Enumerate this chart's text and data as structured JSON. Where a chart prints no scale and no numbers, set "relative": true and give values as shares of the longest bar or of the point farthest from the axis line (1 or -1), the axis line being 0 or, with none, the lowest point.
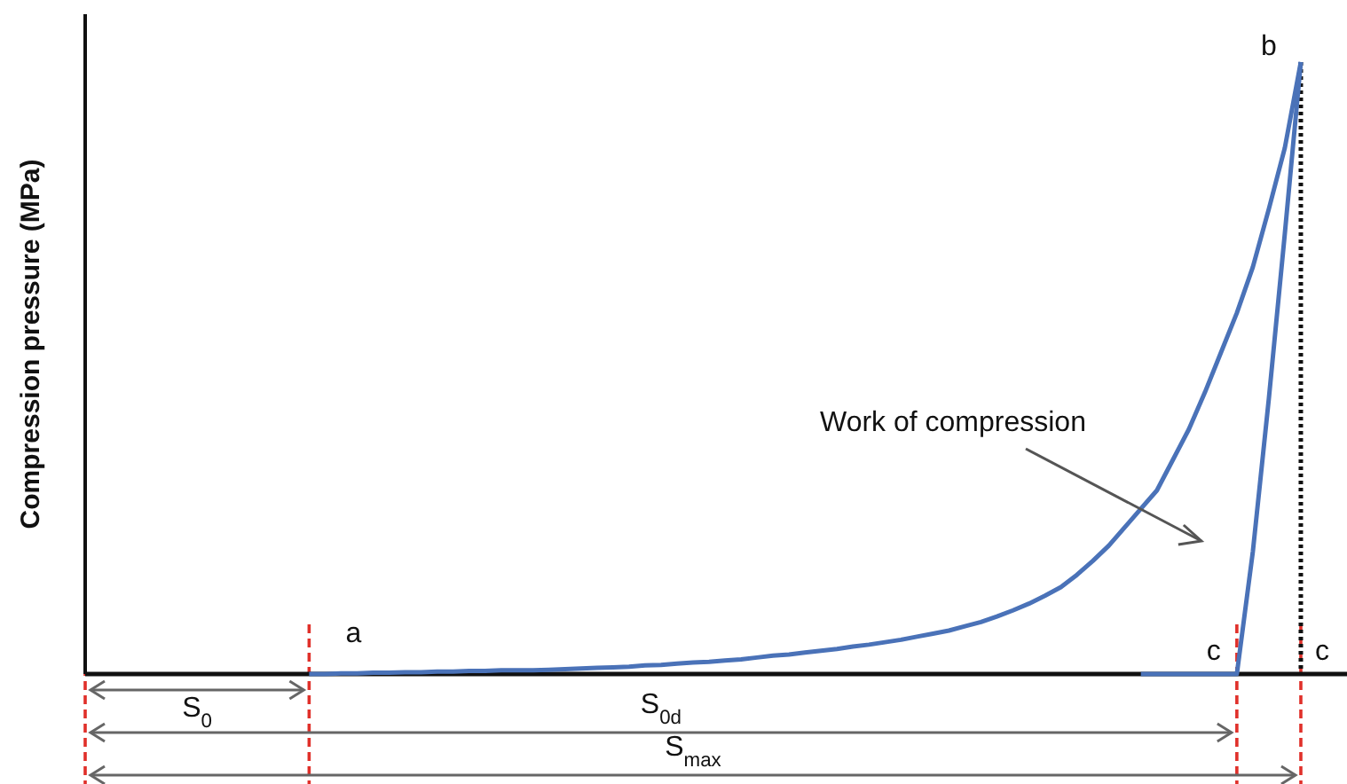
{
  "chart_data": {
    "type": "line",
    "relative": true,
    "ylabel": "Compression pressure (MPa)",
    "line_style": "solid",
    "categories": [
      null,
      null,
      null,
      null,
      null,
      null,
      null,
      null,
      null,
      null,
      null,
      null,
      null,
      null,
      null,
      null,
      null,
      null,
      null,
      null,
      null,
      null,
      null,
      null,
      null,
      null,
      null,
      null,
      null,
      null,
      null,
      null,
      null,
      null,
      null,
      null,
      null,
      null,
      null,
      null,
      null,
      null,
      null,
      null,
      null,
      null,
      null,
      null,
      null,
      null,
      null,
      null,
      null,
      null,
      null,
      null,
      null,
      null,
      null,
      null,
      null,
      null,
      null,
      null,
      null,
      null,
      null,
      null,
      null,
      null,
      null,
      null,
      null,
      null,
      null,
      null,
      null,
      null,
      null,
      null
    ],
    "series": [
      {
        "color": "#4a72b8",
        "values": [
          null,
          null,
          null,
          null,
          null,
          null,
          null,
          null,
          null,
          null,
          null,
          null,
          null,
          null,
          0,
          0,
          0.001,
          0.001,
          0.002,
          0.002,
          0.003,
          0.003,
          0.004,
          0.004,
          0.005,
          0.005,
          0.006,
          0.006,
          0.006,
          0.007,
          0.008,
          0.009,
          0.01,
          0.011,
          0.012,
          0.014,
          0.015,
          0.017,
          0.019,
          0.02,
          0.022,
          0.024,
          0.027,
          0.03,
          0.032,
          0.035,
          0.038,
          0.041,
          0.045,
          0.048,
          0.052,
          0.056,
          0.061,
          0.066,
          0.071,
          0.078,
          0.085,
          0.094,
          0.104,
          0.115,
          0.128,
          0.142,
          0.162,
          0.185,
          0.21,
          0.24,
          0.27,
          0.3,
          0.35,
          0.4,
          0.46,
          0.525,
          0.59,
          0.665,
          0.76,
          0.86,
          1,
          null,
          null,
          null
        ]
      },
      {
        "color": "#4a72b8",
        "values": [
          null,
          null,
          null,
          null,
          null,
          null,
          null,
          null,
          null,
          null,
          null,
          null,
          null,
          null,
          null,
          null,
          null,
          null,
          null,
          null,
          null,
          null,
          null,
          null,
          null,
          null,
          null,
          null,
          null,
          null,
          null,
          null,
          null,
          null,
          null,
          null,
          null,
          null,
          null,
          null,
          null,
          null,
          null,
          null,
          null,
          null,
          null,
          null,
          null,
          null,
          null,
          null,
          null,
          null,
          null,
          null,
          null,
          null,
          null,
          null,
          null,
          null,
          null,
          null,
          null,
          null,
          0,
          0,
          0,
          0,
          0,
          0,
          0,
          0.2,
          0.45,
          0.72,
          1,
          null,
          null,
          null
        ]
      }
    ],
    "annotations": [
      "a",
      "b",
      "c",
      "c",
      "Work of compression",
      "S$_{0}$",
      "S$_{0d}$",
      "S$_{max}$"
    ]
  }
}
